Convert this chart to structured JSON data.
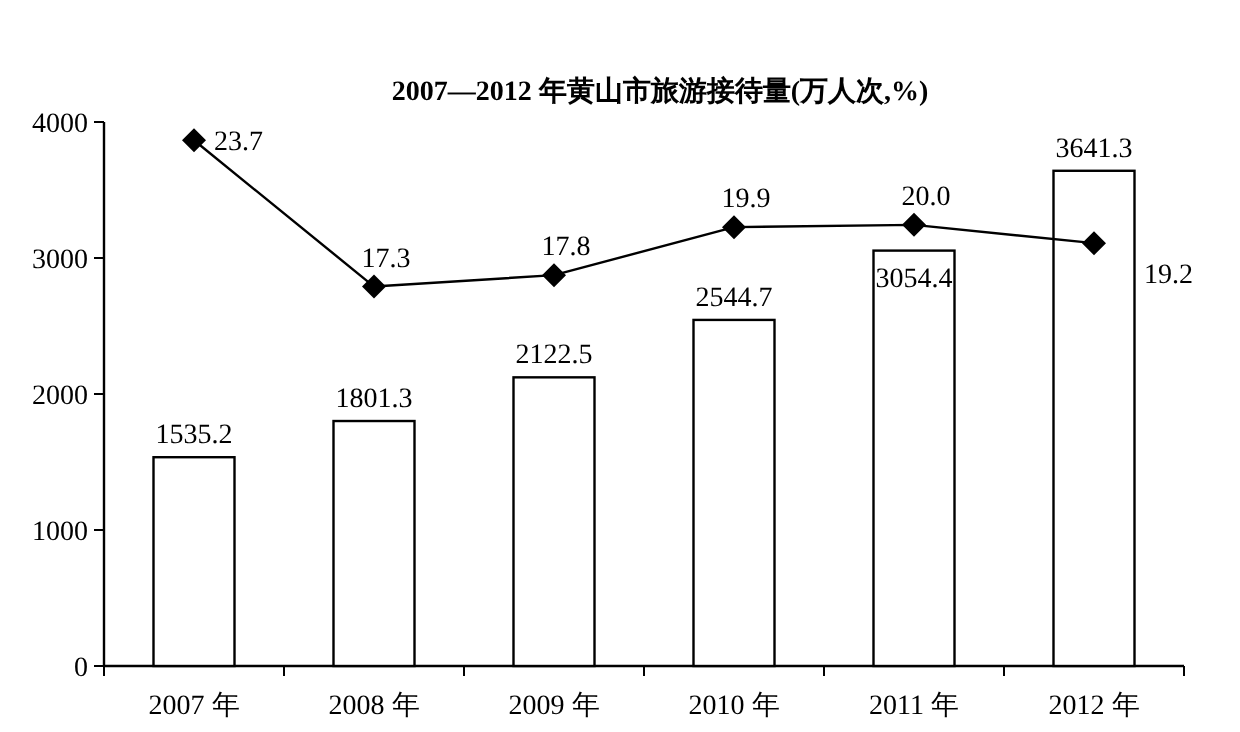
{
  "chart_data": {
    "type": "bar",
    "title": "2007—2012 年黄山市旅游接待量(万人次,%)",
    "categories": [
      "2007 年",
      "2008 年",
      "2009 年",
      "2010 年",
      "2011 年",
      "2012 年"
    ],
    "series": [
      {
        "color": "#ffffff",
        "values": [
          1535.2,
          1801.3,
          2122.5,
          2544.7,
          3054.4,
          3641.3
        ]
      },
      {
        "type": "line",
        "axis": "y2",
        "color": "#000000",
        "marker": "diamond",
        "values": [
          23.7,
          17.3,
          17.8,
          19.9,
          20.0,
          19.2
        ],
        "value_labels": [
          "23.7",
          "17.3",
          "17.8",
          "19.9",
          "20.0",
          "19.2"
        ]
      }
    ],
    "ylim": [
      0,
      4000
    ],
    "yticks": [
      0,
      1000,
      2000,
      3000,
      4000
    ],
    "y2lim": [
      0.7,
      24.5
    ],
    "tick_labels": [
      "x",
      "y"
    ],
    "data_labels": true,
    "grid": false
  }
}
